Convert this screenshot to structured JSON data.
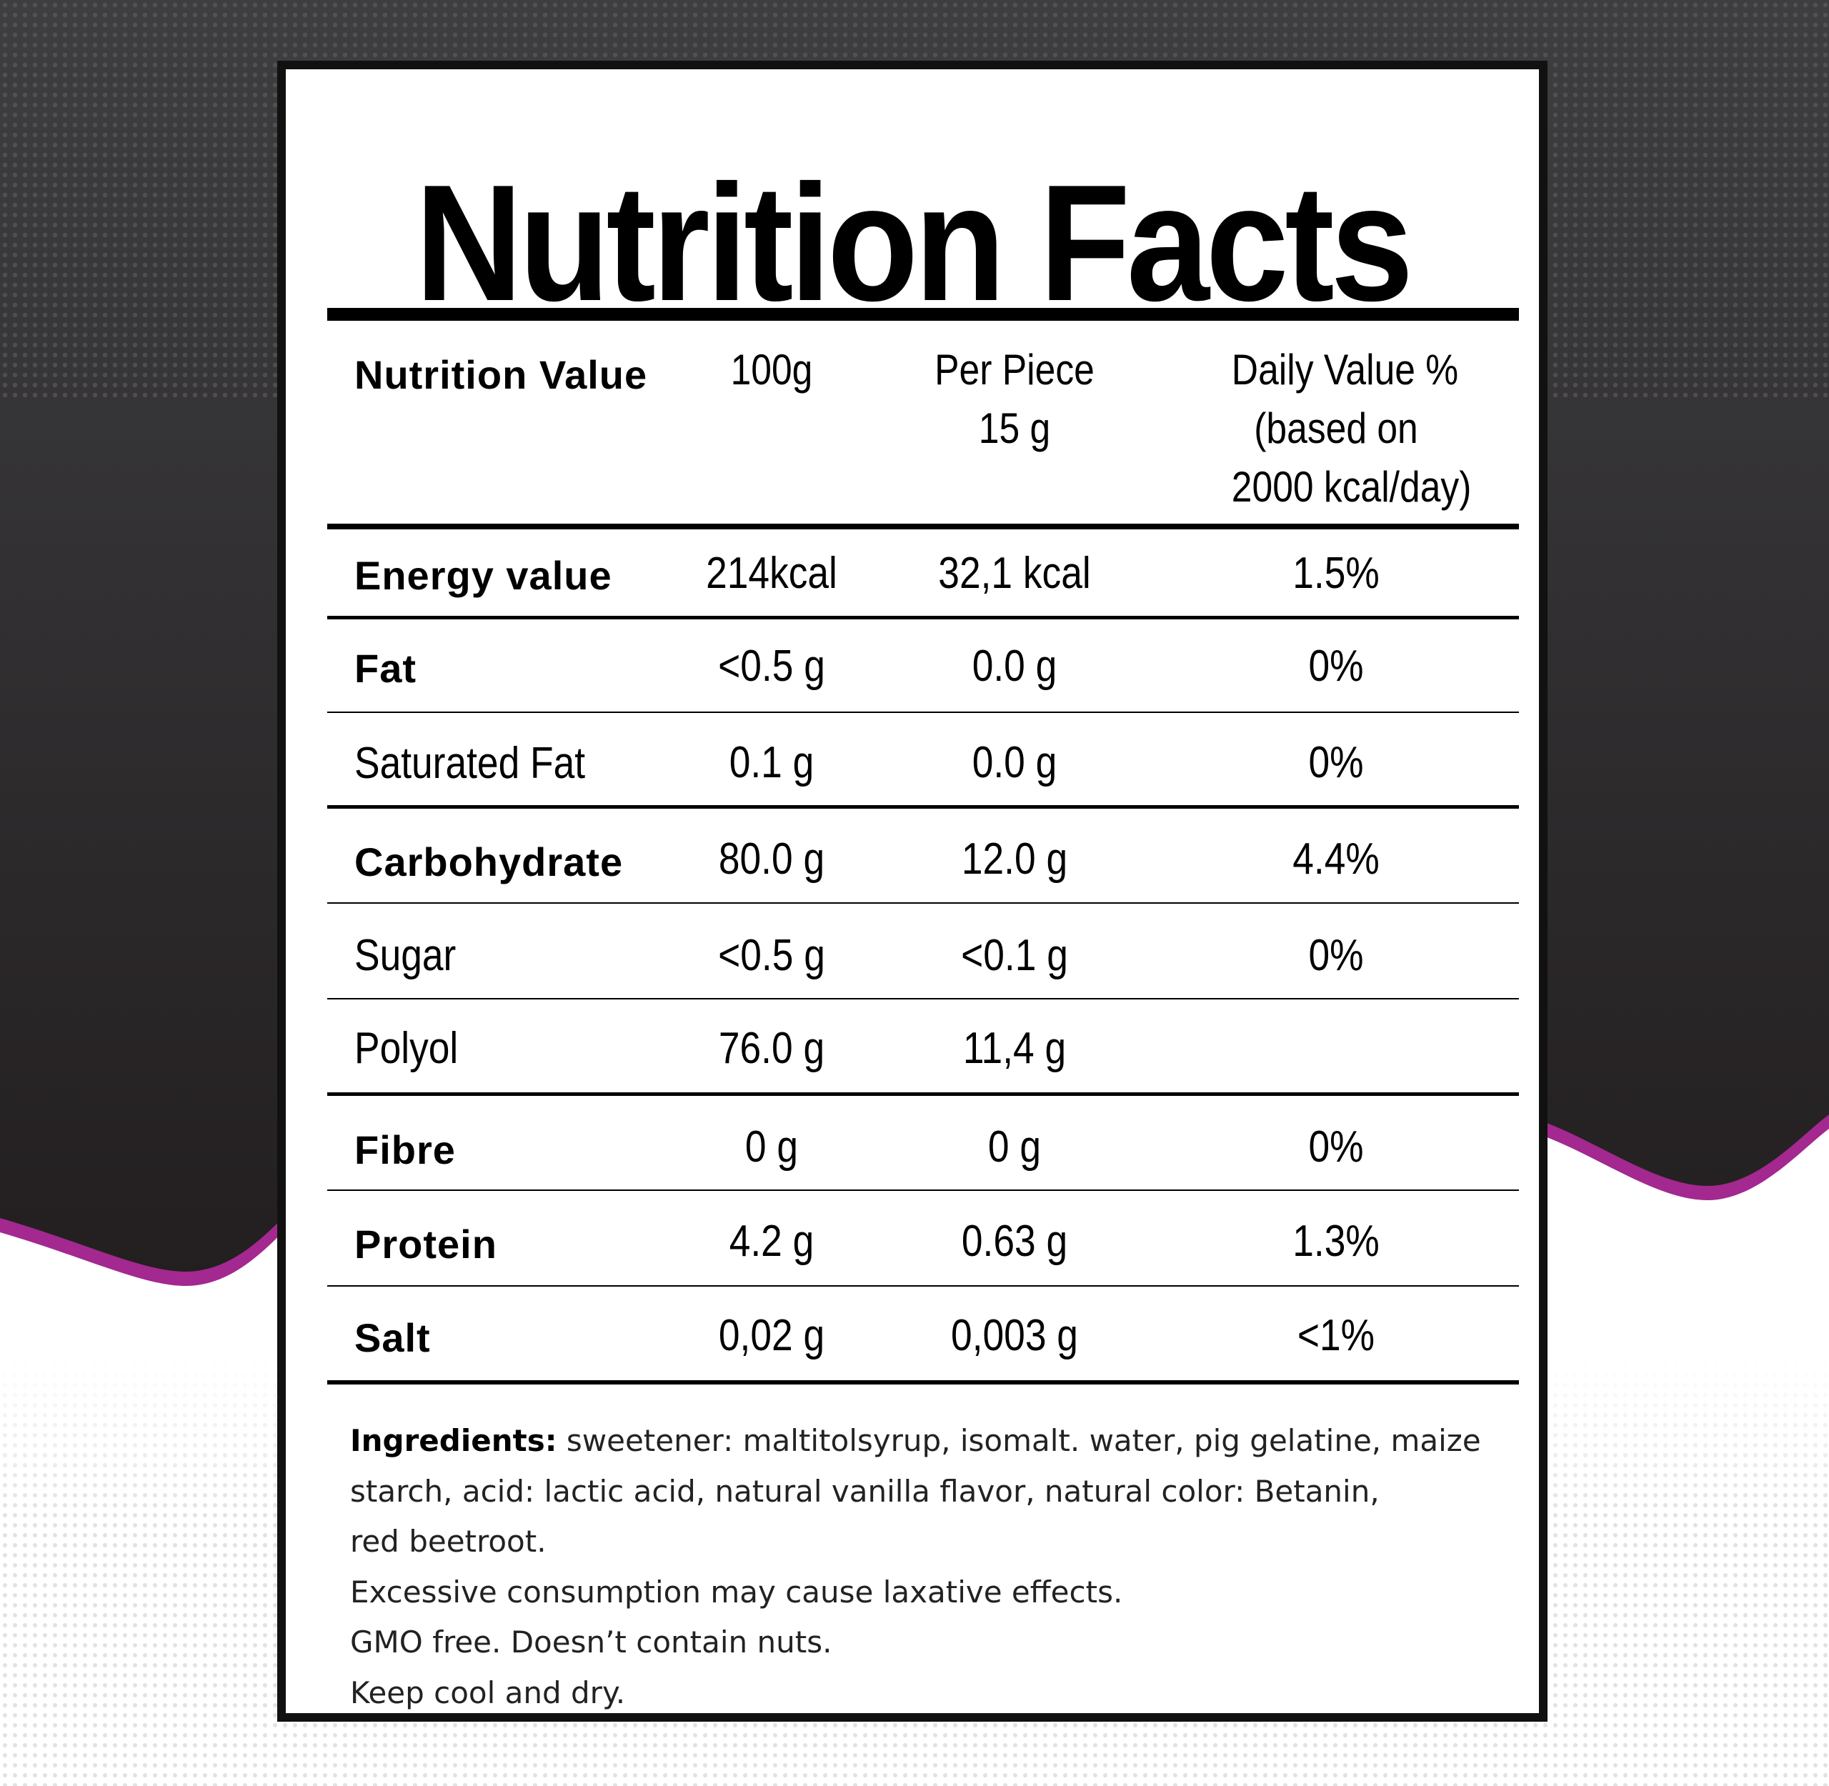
{
  "title": "Nutrition Facts",
  "colors": {
    "dark_background": "#231f20",
    "accent_wave": "#a3288f",
    "panel": "#ffffff"
  },
  "header": {
    "label": "Nutrition Value",
    "col1": "100g",
    "col2_line1": "Per Piece",
    "col2_line2": "15 g",
    "col3_line1": "Daily Value %",
    "col3_line2": "(based on",
    "col3_line3": "2000 kcal/day)"
  },
  "rows": [
    {
      "label": "Energy value",
      "bold": true,
      "per100g": "214kcal",
      "per_piece": "32,1 kcal",
      "dv": "1.5%"
    },
    {
      "label": "Fat",
      "bold": true,
      "per100g": "<0.5 g",
      "per_piece": "0.0 g",
      "dv": "0%"
    },
    {
      "label": "Saturated Fat",
      "bold": false,
      "per100g": "0.1 g",
      "per_piece": "0.0 g",
      "dv": "0%"
    },
    {
      "label": "Carbohydrate",
      "bold": true,
      "per100g": "80.0 g",
      "per_piece": "12.0 g",
      "dv": "4.4%"
    },
    {
      "label": "Sugar",
      "bold": false,
      "per100g": "<0.5 g",
      "per_piece": "<0.1 g",
      "dv": "0%"
    },
    {
      "label": "Polyol",
      "bold": false,
      "per100g": "76.0 g",
      "per_piece": "11,4 g",
      "dv": ""
    },
    {
      "label": "Fibre",
      "bold": true,
      "per100g": "0 g",
      "per_piece": "0 g",
      "dv": "0%"
    },
    {
      "label": "Protein",
      "bold": true,
      "per100g": "4.2 g",
      "per_piece": "0.63 g",
      "dv": "1.3%"
    },
    {
      "label": "Salt",
      "bold": true,
      "per100g": "0,02 g",
      "per_piece": "0,003 g",
      "dv": "<1%"
    }
  ],
  "footer": {
    "ingredients_label": "Ingredients:",
    "ingredients_text_1": " sweetener: maltitolsyrup, isomalt. water, pig gelatine, maize",
    "ingredients_text_2": "starch, acid: lactic acid, natural vanilla flavor, natural color: Betanin,",
    "ingredients_text_3": "red beetroot.",
    "warning": "Excessive consumption may cause laxative effects.",
    "gmo": "GMO free. Doesn’t contain nuts.",
    "storage": "Keep cool and dry."
  }
}
